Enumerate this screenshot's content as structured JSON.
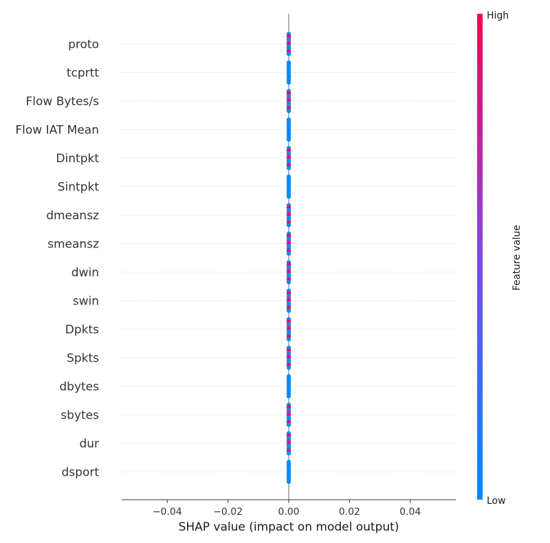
{
  "chart_data": {
    "type": "scatter",
    "subtype": "shap-beeswarm",
    "title": "",
    "xlabel": "SHAP value (impact on model output)",
    "xlim": [
      -0.055,
      0.055
    ],
    "xticks": [
      -0.04,
      -0.02,
      0.0,
      0.02,
      0.04
    ],
    "xtick_labels": [
      "−0.04",
      "−0.02",
      "0.00",
      "0.02",
      "0.04"
    ],
    "features": [
      "proto",
      "tcprtt",
      "Flow Bytes/s",
      "Flow IAT Mean",
      "Dintpkt",
      "Sintpkt",
      "dmeansz",
      "smeansz",
      "dwin",
      "swin",
      "Dpkts",
      "Spkts",
      "dbytes",
      "sbytes",
      "dur",
      "dsport"
    ],
    "shap_values_all_features": 0.0,
    "grid": "dotted horizontal per feature",
    "colorbar": {
      "title": "Feature value",
      "high_label": "High",
      "low_label": "Low",
      "low_color": "#008bfb",
      "mid_color": "#7e4be0",
      "high_color": "#ff0052"
    },
    "features_with_high_value_points": [
      "proto",
      "Flow Bytes/s",
      "Dintpkt",
      "dmeansz",
      "smeansz",
      "dwin",
      "swin",
      "Dpkts",
      "Spkts",
      "sbytes",
      "dur"
    ]
  }
}
